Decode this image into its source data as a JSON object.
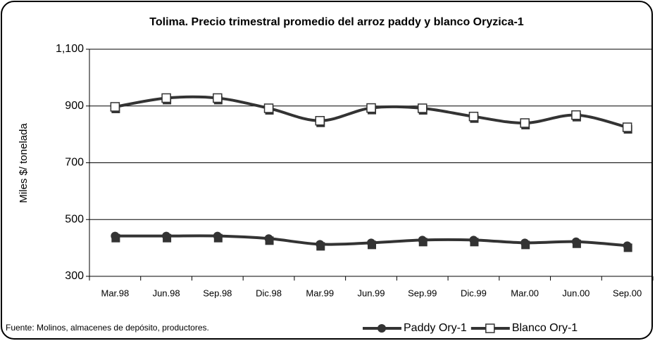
{
  "chart_data": {
    "type": "line",
    "title": "Tolima. Precio trimestral promedio del arroz paddy y blanco Oryzica-1",
    "y_label": "Miles $/ tonelada",
    "source": "Fuente: Molinos, almacenes de depósito, productores.",
    "categories": [
      "Mar.98",
      "Jun.98",
      "Sep.98",
      "Dic.98",
      "Mar.99",
      "Jun.99",
      "Sep.99",
      "Dic.99",
      "Mar.00",
      "Jun.00",
      "Sep.00"
    ],
    "series": [
      {
        "name": "Paddy Ory-1",
        "color": "#333333",
        "marker": "circle",
        "values": [
          442,
          442,
          442,
          433,
          413,
          418,
          428,
          428,
          418,
          422,
          408
        ]
      },
      {
        "name": "Blanco Ory-1",
        "color": "#333333",
        "marker": "square",
        "values": [
          897,
          928,
          928,
          892,
          848,
          893,
          892,
          863,
          840,
          868,
          825
        ]
      }
    ],
    "ylim": [
      300,
      1100
    ],
    "yticks": [
      300,
      500,
      700,
      900,
      {
        "value": 1100,
        "label": "1,100"
      }
    ],
    "grid": true,
    "legend": "bottom-right"
  }
}
